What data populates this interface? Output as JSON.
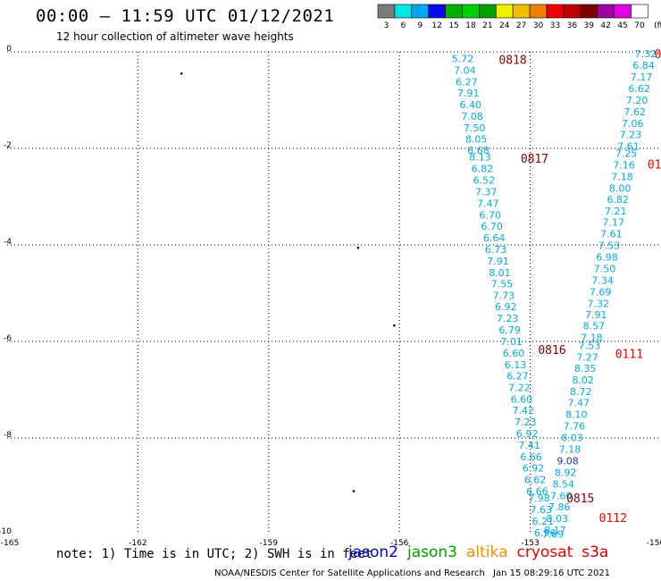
{
  "header": {
    "title": "00:00 – 11:59 UTC 01/12/2021",
    "subtitle": "12 hour collection of altimeter wave heights"
  },
  "colorbar": {
    "colors": [
      "#7a7a7a",
      "#00e5e5",
      "#00a8f0",
      "#0a0aee",
      "#00b000",
      "#00d000",
      "#00a000",
      "#f0f000",
      "#f0c000",
      "#f08000",
      "#f00000",
      "#c00000",
      "#800000",
      "#a000a0",
      "#e000e0",
      "#ffffff"
    ],
    "labels": [
      "3",
      "6",
      "9",
      "12",
      "15",
      "18",
      "21",
      "24",
      "27",
      "30",
      "33",
      "36",
      "39",
      "42",
      "45",
      "70",
      "(ft)"
    ]
  },
  "footer": {
    "note": "note: 1) Time is in UTC; 2) SWH is in feet",
    "satellites": [
      {
        "name": "jason2",
        "color": "#0000dd"
      },
      {
        "name": "jason3",
        "color": "#00a000"
      },
      {
        "name": "altika",
        "color": "#ff8c00"
      },
      {
        "name": "cryosat",
        "color": "#ee0000"
      },
      {
        "name": "s3a",
        "color": "#cc0000"
      }
    ],
    "source": "NOAA/NESDIS Center for Satellite Applications and Research",
    "timestamp": "Jan 15 08:29:16 UTC 2021"
  },
  "chart_data": {
    "type": "scatter",
    "xlim": [
      -165,
      -150
    ],
    "ylim": [
      -10,
      0
    ],
    "xticks": [
      "-165",
      "-162",
      "-159",
      "-156",
      "-153",
      "-150"
    ],
    "yticks": [
      "0",
      "-2",
      "-4",
      "-6",
      "-8",
      "-10"
    ],
    "grid": true,
    "point_color": "#00aaee",
    "highlight_color": "#2233cc",
    "time_color": "#8b0000",
    "time_color_alt": "#ee0000",
    "track_a": {
      "values": [
        "5.72",
        "7.04",
        "6.27",
        "7.91",
        "6.40",
        "7.08",
        "7.50",
        "8.05",
        "6.68",
        "8.13",
        "6.82",
        "6.52",
        "7.37",
        "7.47",
        "6.70",
        "6.70",
        "6.64",
        "6.73",
        "7.91",
        "8.01",
        "7.55",
        "7.73",
        "6.92",
        "7.23",
        "6.79",
        "7.01",
        "6.60",
        "6.13",
        "6.27",
        "7.22",
        "6.60",
        "7.42",
        "7.23",
        "6.92",
        "7.41",
        "6.66",
        "6.92",
        "6.62",
        "6.66",
        "7.98",
        "7.63",
        "6.21",
        "6.96"
      ],
      "lon": [
        -154.55,
        -154.5,
        -154.46,
        -154.42,
        -154.37,
        -154.33,
        -154.28,
        -154.24,
        -154.19,
        -154.15,
        -154.1,
        -154.06,
        -154.01,
        -153.97,
        -153.92,
        -153.88,
        -153.83,
        -153.79,
        -153.74,
        -153.7,
        -153.65,
        -153.61,
        -153.56,
        -153.52,
        -153.47,
        -153.43,
        -153.38,
        -153.34,
        -153.29,
        -153.25,
        -153.2,
        -153.16,
        -153.11,
        -153.07,
        -153.02,
        -152.98,
        -152.93,
        -152.89,
        -152.84,
        -152.8,
        -152.75,
        -152.71,
        -152.66
      ],
      "lat": [
        -0.14,
        -0.38,
        -0.62,
        -0.85,
        -1.09,
        -1.33,
        -1.57,
        -1.81,
        -2.04,
        -2.18,
        -2.42,
        -2.66,
        -2.9,
        -3.14,
        -3.38,
        -3.61,
        -3.85,
        -4.09,
        -4.33,
        -4.57,
        -4.81,
        -5.05,
        -5.28,
        -5.52,
        -5.76,
        -6.0,
        -6.24,
        -6.48,
        -6.71,
        -6.95,
        -7.19,
        -7.43,
        -7.67,
        -7.91,
        -8.15,
        -8.39,
        -8.62,
        -8.86,
        -9.1,
        -9.24,
        -9.48,
        -9.72,
        -9.96
      ]
    },
    "track_b": {
      "values": [
        "7.32",
        "6.84",
        "7.17",
        "6.62",
        "7.20",
        "7.62",
        "7.06",
        "7.23",
        "7.61",
        "7.25",
        "7.16",
        "7.18",
        "8.00",
        "6.82",
        "7.21",
        "7.17",
        "7.61",
        "7.53",
        "6.98",
        "7.50",
        "7.34",
        "7.69",
        "7.32",
        "7.91",
        "8.57",
        "7.18",
        "7.53",
        "7.27",
        "8.35",
        "8.02",
        "8.72",
        "7.47",
        "8.10",
        "7.76",
        "8.03",
        "7.18",
        "9.08",
        "8.92",
        "8.54",
        "7.60",
        "7.86",
        "8.03",
        "8.17",
        "7.69"
      ],
      "lon": [
        -150.35,
        -150.4,
        -150.45,
        -150.5,
        -150.55,
        -150.6,
        -150.65,
        -150.7,
        -150.75,
        -150.8,
        -150.85,
        -150.89,
        -150.94,
        -150.99,
        -151.04,
        -151.09,
        -151.14,
        -151.19,
        -151.24,
        -151.29,
        -151.34,
        -151.39,
        -151.44,
        -151.49,
        -151.54,
        -151.59,
        -151.64,
        -151.69,
        -151.74,
        -151.79,
        -151.84,
        -151.89,
        -151.94,
        -151.99,
        -152.04,
        -152.09,
        -152.14,
        -152.19,
        -152.24,
        -152.29,
        -152.33,
        -152.38,
        -152.43,
        -152.48
      ],
      "lat": [
        -0.04,
        -0.28,
        -0.52,
        -0.76,
        -1.0,
        -1.24,
        -1.48,
        -1.71,
        -1.95,
        -2.1,
        -2.34,
        -2.58,
        -2.82,
        -3.06,
        -3.3,
        -3.53,
        -3.77,
        -4.01,
        -4.25,
        -4.49,
        -4.73,
        -4.97,
        -5.21,
        -5.44,
        -5.68,
        -5.92,
        -6.08,
        -6.32,
        -6.56,
        -6.8,
        -7.04,
        -7.27,
        -7.51,
        -7.75,
        -7.99,
        -8.23,
        -8.47,
        -8.71,
        -8.95,
        -9.19,
        -9.43,
        -9.67,
        -9.91,
        -9.99
      ]
    },
    "track_b_highlight_index": 36,
    "time_labels": [
      {
        "text": "0818",
        "lon": -153.4,
        "lat": -0.16,
        "alt": false
      },
      {
        "text": "0817",
        "lon": -152.9,
        "lat": -2.2,
        "alt": false
      },
      {
        "text": "0816",
        "lon": -152.5,
        "lat": -6.17,
        "alt": false
      },
      {
        "text": "0815",
        "lon": -151.85,
        "lat": -9.24,
        "alt": false
      },
      {
        "text": "0111",
        "lon": -150.73,
        "lat": -6.25,
        "alt": true
      },
      {
        "text": "0112",
        "lon": -151.1,
        "lat": -9.65,
        "alt": true
      },
      {
        "text": "01",
        "lon": -150.15,
        "lat": -2.32,
        "alt": true
      },
      {
        "text": "0",
        "lon": -150.07,
        "lat": -0.04,
        "alt": true
      }
    ],
    "land": [
      {
        "lon": -161.0,
        "lat": -0.45
      },
      {
        "lon": -156.95,
        "lat": -4.06
      },
      {
        "lon": -156.12,
        "lat": -5.67
      },
      {
        "lon": -157.05,
        "lat": -9.1
      }
    ]
  }
}
